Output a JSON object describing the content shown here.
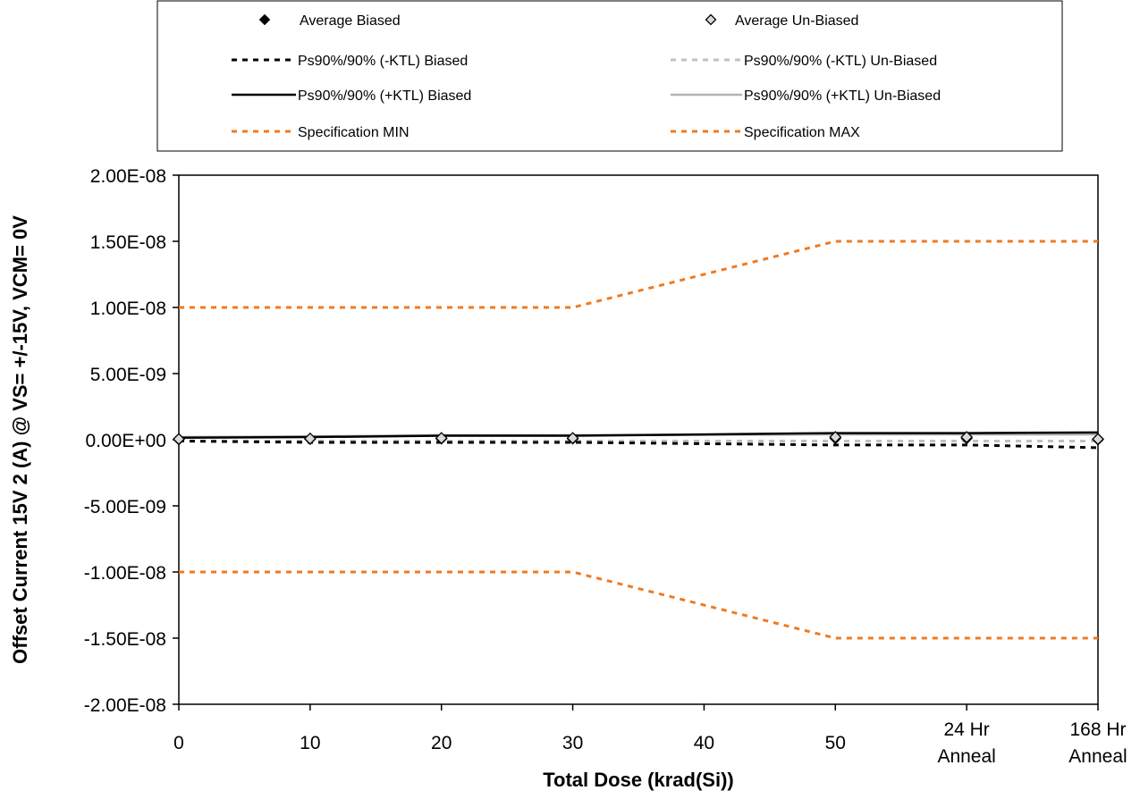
{
  "chart_data": {
    "type": "line",
    "title": "",
    "xlabel": "Total Dose (krad(Si))",
    "ylabel": "Offset Current 15V 2 (A) @ VS= +/-15V, VCM= 0V",
    "categories": [
      [
        "0"
      ],
      [
        "10"
      ],
      [
        "20"
      ],
      [
        "30"
      ],
      [
        "40"
      ],
      [
        "50"
      ],
      [
        "24 Hr",
        "Anneal"
      ],
      [
        "168 Hr",
        "Anneal"
      ]
    ],
    "x_positions": [
      0,
      1,
      2,
      3,
      4,
      5,
      6,
      7
    ],
    "ylim": [
      -2e-08,
      2e-08
    ],
    "yticks": [
      2e-08,
      1.5e-08,
      1e-08,
      5e-09,
      0,
      -5e-09,
      -1e-08,
      -1.5e-08,
      -2e-08
    ],
    "ytick_labels": [
      "2.00E-08",
      "1.50E-08",
      "1.00E-08",
      "5.00E-09",
      "0.00E+00",
      "-5.00E-09",
      "-1.00E-08",
      "-1.50E-08",
      "-2.00E-08"
    ],
    "grid": false,
    "legend_position": "top",
    "series": [
      {
        "name": "Average Biased",
        "style": "marker-filled-diamond",
        "color": "#000000",
        "x": [
          0,
          1,
          2,
          3,
          5,
          6,
          7
        ],
        "values": [
          2e-11,
          5e-11,
          8e-11,
          8e-11,
          1e-10,
          1e-10,
          1e-11
        ]
      },
      {
        "name": "Average Un-Biased",
        "style": "marker-open-diamond",
        "color": "#808080",
        "x": [
          0,
          1,
          2,
          3,
          5,
          6,
          7
        ],
        "values": [
          5e-11,
          8e-11,
          1.2e-10,
          1.2e-10,
          2e-10,
          2e-10,
          5e-11
        ]
      },
      {
        "name": "Ps90%/90% (-KTL) Biased",
        "style": "dash",
        "color": "#000000",
        "x": [
          0,
          1,
          2,
          3,
          5,
          6,
          7
        ],
        "values": [
          -1e-10,
          -2e-10,
          -2e-10,
          -2e-10,
          -4e-10,
          -4e-10,
          -6e-10
        ]
      },
      {
        "name": "Ps90%/90% (-KTL) Un-Biased",
        "style": "dash",
        "color": "#c0c0c0",
        "x": [
          0,
          1,
          2,
          3,
          5,
          6,
          7
        ],
        "values": [
          -1e-10,
          -1e-10,
          -1e-10,
          -1e-10,
          -1e-10,
          -1e-10,
          -1e-10
        ]
      },
      {
        "name": "Ps90%/90% (+KTL) Biased",
        "style": "solid",
        "color": "#000000",
        "x": [
          0,
          1,
          2,
          3,
          5,
          6,
          7
        ],
        "values": [
          1.5e-10,
          2e-10,
          3e-10,
          3e-10,
          5e-10,
          5e-10,
          5.5e-10
        ]
      },
      {
        "name": "Ps90%/90% (+KTL) Un-Biased",
        "style": "solid",
        "color": "#b4b4b4",
        "x": [
          0,
          1,
          2,
          3,
          5,
          6,
          7
        ],
        "values": [
          2e-10,
          2.5e-10,
          3.5e-10,
          3.5e-10,
          4e-10,
          4e-10,
          4e-10
        ]
      },
      {
        "name": "Specification MIN",
        "style": "dash",
        "color": "#f07a20",
        "x": [
          0,
          1,
          2,
          3,
          5,
          6,
          7
        ],
        "values": [
          -1e-08,
          -1e-08,
          -1e-08,
          -1e-08,
          -1.5e-08,
          -1.5e-08,
          -1.5e-08
        ]
      },
      {
        "name": "Specification MAX",
        "style": "dash",
        "color": "#f07a20",
        "x": [
          0,
          1,
          2,
          3,
          5,
          6,
          7
        ],
        "values": [
          1e-08,
          1e-08,
          1e-08,
          1e-08,
          1.5e-08,
          1.5e-08,
          1.5e-08
        ]
      }
    ]
  }
}
